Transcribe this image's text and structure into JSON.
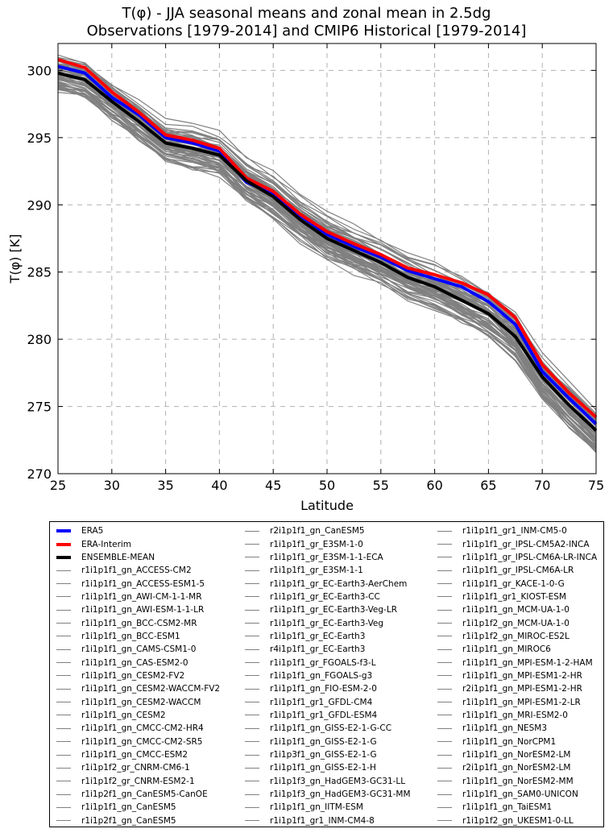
{
  "chart_data": {
    "type": "line",
    "title": "T(φ) - JJA seasonal means and zonal mean in 2.5dg",
    "subtitle": "Observations [1979-2014] and CMIP6 Historical [1979-2014]",
    "xlabel": "Latitude",
    "ylabel": "T(φ) [K]",
    "xlim": [
      25,
      75
    ],
    "ylim": [
      270,
      302
    ],
    "xticks": [
      "25",
      "30",
      "35",
      "40",
      "45",
      "50",
      "55",
      "60",
      "65",
      "70",
      "75"
    ],
    "yticks": [
      "270",
      "275",
      "280",
      "285",
      "290",
      "295",
      "300"
    ],
    "grid": true,
    "legend_position": "below plot, three columns",
    "x": [
      25,
      27.5,
      30,
      32.5,
      35,
      37.5,
      40,
      42.5,
      45,
      47.5,
      50,
      52.5,
      55,
      57.5,
      60,
      62.5,
      65,
      67.5,
      70,
      72.5,
      75
    ],
    "series": [
      {
        "name": "ERA5",
        "color": "#0000ff",
        "width": 4,
        "values": [
          300.3,
          299.8,
          298.0,
          296.7,
          295.0,
          294.6,
          294.0,
          291.7,
          290.8,
          289.2,
          287.8,
          286.9,
          286.1,
          285.1,
          284.5,
          283.9,
          282.8,
          281.1,
          277.6,
          275.6,
          273.7
        ]
      },
      {
        "name": "ERA-Interim",
        "color": "#ff0000",
        "width": 4,
        "values": [
          300.8,
          300.2,
          298.4,
          296.9,
          295.2,
          294.8,
          294.2,
          292.0,
          291.0,
          289.3,
          288.0,
          287.1,
          286.3,
          285.3,
          284.8,
          284.2,
          283.3,
          281.6,
          278.1,
          276.0,
          274.2
        ]
      },
      {
        "name": "ENSEMBLE-MEAN",
        "color": "#000000",
        "width": 4,
        "values": [
          299.8,
          299.3,
          297.7,
          296.2,
          294.6,
          294.2,
          293.7,
          291.8,
          290.6,
          288.9,
          287.5,
          286.6,
          285.7,
          284.6,
          283.9,
          282.9,
          281.9,
          280.2,
          277.2,
          275.1,
          273.2
        ]
      }
    ],
    "models": [
      "r1i1p1f1_gn_ACCESS-CM2",
      "r1i1p1f1_gn_ACCESS-ESM1-5",
      "r1i1p1f1_gn_AWI-CM-1-1-MR",
      "r1i1p1f1_gn_AWI-ESM-1-1-LR",
      "r1i1p1f1_gn_BCC-CSM2-MR",
      "r1i1p1f1_gn_BCC-ESM1",
      "r1i1p1f1_gn_CAMS-CSM1-0",
      "r1i1p1f1_gn_CAS-ESM2-0",
      "r1i1p1f1_gn_CESM2-FV2",
      "r1i1p1f1_gn_CESM2-WACCM-FV2",
      "r1i1p1f1_gn_CESM2-WACCM",
      "r1i1p1f1_gn_CESM2",
      "r1i1p1f1_gn_CMCC-CM2-HR4",
      "r1i1p1f1_gn_CMCC-CM2-SR5",
      "r1i1p1f1_gn_CMCC-ESM2",
      "r1i1p1f2_gr_CNRM-CM6-1",
      "r1i1p1f2_gr_CNRM-ESM2-1",
      "r1i1p2f1_gn_CanESM5-CanOE",
      "r1i1p1f1_gn_CanESM5",
      "r1i1p2f1_gn_CanESM5",
      "r2i1p1f1_gn_CanESM5",
      "r1i1p1f1_gr_E3SM-1-0",
      "r1i1p1f1_gr_E3SM-1-1-ECA",
      "r1i1p1f1_gr_E3SM-1-1",
      "r1i1p1f1_gr_EC-Earth3-AerChem",
      "r1i1p1f1_gr_EC-Earth3-CC",
      "r1i1p1f1_gr_EC-Earth3-Veg-LR",
      "r1i1p1f1_gr_EC-Earth3-Veg",
      "r1i1p1f1_gr_EC-Earth3",
      "r4i1p1f1_gr_EC-Earth3",
      "r1i1p1f1_gr_FGOALS-f3-L",
      "r1i1p1f1_gn_FGOALS-g3",
      "r1i1p1f1_gn_FIO-ESM-2-0",
      "r1i1p1f1_gr1_GFDL-CM4",
      "r1i1p1f1_gr1_GFDL-ESM4",
      "r1i1p1f1_gn_GISS-E2-1-G-CC",
      "r1i1p1f1_gn_GISS-E2-1-G",
      "r1i1p3f1_gn_GISS-E2-1-G",
      "r1i1p1f1_gn_GISS-E2-1-H",
      "r1i1p1f3_gn_HadGEM3-GC31-LL",
      "r1i1p1f3_gn_HadGEM3-GC31-MM",
      "r1i1p1f1_gn_IITM-ESM",
      "r1i1p1f1_gr1_INM-CM4-8",
      "r1i1p1f1_gr1_INM-CM5-0",
      "r1i1p1f1_gr_IPSL-CM5A2-INCA",
      "r1i1p1f1_gr_IPSL-CM6A-LR-INCA",
      "r1i1p1f1_gr_IPSL-CM6A-LR",
      "r1i1p1f1_gr_KACE-1-0-G",
      "r1i1p1f1_gr1_KIOST-ESM",
      "r1i1p1f1_gn_MCM-UA-1-0",
      "r1i1p1f2_gn_MCM-UA-1-0",
      "r1i1p1f2_gn_MIROC-ES2L",
      "r1i1p1f1_gn_MIROC6",
      "r1i1p1f1_gn_MPI-ESM-1-2-HAM",
      "r1i1p1f1_gn_MPI-ESM1-2-HR",
      "r2i1p1f1_gn_MPI-ESM1-2-HR",
      "r1i1p1f1_gn_MPI-ESM1-2-LR",
      "r1i1p1f1_gn_MRI-ESM2-0",
      "r1i1p1f1_gn_NESM3",
      "r1i1p1f1_gn_NorCPM1",
      "r1i1p1f1_gn_NorESM2-LM",
      "r2i1p1f1_gn_NorESM2-LM",
      "r1i1p1f1_gn_NorESM2-MM",
      "r1i1p1f1_gn_SAM0-UNICON",
      "r1i1p1f1_gn_TaiESM1",
      "r1i1p1f2_gn_UKESM1-0-LL"
    ],
    "model_color": "#808080"
  }
}
